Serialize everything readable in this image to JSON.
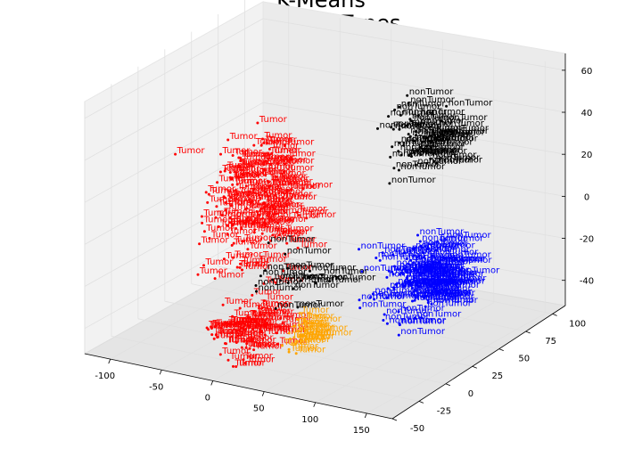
{
  "chart_data": {
    "type": "scatter",
    "projection": "3d",
    "title_line1": "K-Means",
    "title_line2": "True Cell Types",
    "axes": {
      "x": {
        "ticks": [
          "-100",
          "-50",
          "0",
          "50",
          "100",
          "150"
        ],
        "range": [
          -125,
          175
        ]
      },
      "y": {
        "ticks": [
          "-50",
          "-25",
          "0",
          "25",
          "50",
          "75",
          "100"
        ],
        "range": [
          -50,
          112
        ]
      },
      "z": {
        "ticks": [
          "-40",
          "-20",
          "0",
          "20",
          "40",
          "60"
        ],
        "range": [
          -52,
          68
        ]
      }
    },
    "grid": true,
    "point_labels": [
      "Tumor",
      "nonTumor"
    ],
    "colors": {
      "cluster_red": "#ff0000",
      "cluster_blue": "#0000ff",
      "cluster_orange": "#ffa500",
      "cluster_black": "#000000",
      "pane": "#f2f2f2",
      "grid": "#e0e0e0"
    },
    "clusters": [
      {
        "color_key": "cluster_red",
        "label": "Tumor",
        "center": [
          -60,
          40,
          -5
        ],
        "spread": [
          30,
          28,
          22
        ],
        "count": 160
      },
      {
        "color_key": "cluster_red",
        "label": "Tumor",
        "center": [
          10,
          -30,
          -35
        ],
        "spread": [
          25,
          15,
          10
        ],
        "count": 70
      },
      {
        "color_key": "cluster_orange",
        "label": "Tumor",
        "center": [
          45,
          -10,
          -38
        ],
        "spread": [
          12,
          10,
          6
        ],
        "count": 28
      },
      {
        "color_key": "cluster_blue",
        "label": "nonTumor",
        "center": [
          110,
          30,
          -20
        ],
        "spread": [
          25,
          22,
          15
        ],
        "count": 110
      },
      {
        "color_key": "cluster_black",
        "label": "nonTumor",
        "center": [
          75,
          65,
          35
        ],
        "spread": [
          18,
          18,
          15
        ],
        "count": 55
      },
      {
        "color_key": "cluster_black",
        "label": "nonTumor",
        "center": [
          10,
          0,
          -20
        ],
        "spread": [
          30,
          20,
          15
        ],
        "count": 18
      }
    ]
  }
}
